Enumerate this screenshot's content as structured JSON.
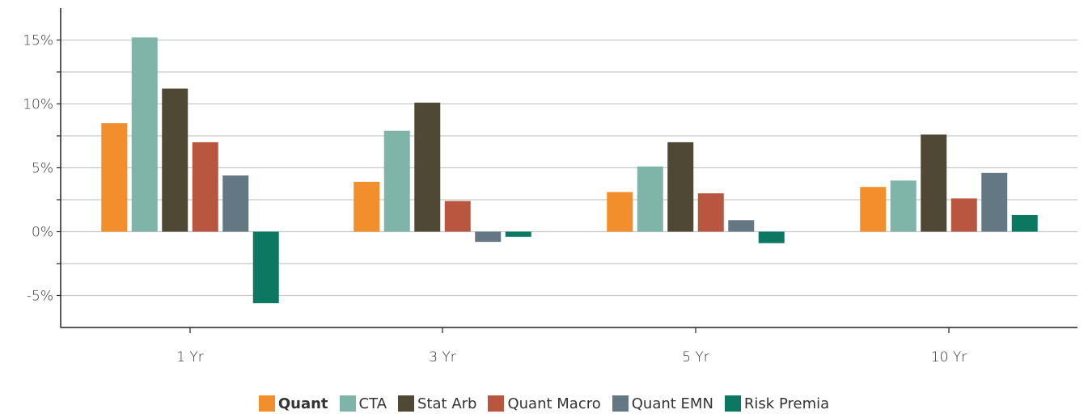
{
  "chart_data": {
    "type": "bar",
    "categories": [
      "1 Yr",
      "3 Yr",
      "5 Yr",
      "10 Yr"
    ],
    "ylim": [
      -7.5,
      17.5
    ],
    "y_ticks": [
      -5,
      0,
      5,
      10,
      15
    ],
    "y_tick_labels": [
      "-5%",
      "0%",
      "5%",
      "10%",
      "15%"
    ],
    "grid": true,
    "legend_position": "bottom",
    "series": [
      {
        "name": "Quant",
        "color": "#F28E2B",
        "values": [
          8.5,
          3.9,
          3.1,
          3.5
        ],
        "bold": true
      },
      {
        "name": "CTA",
        "color": "#7FB5A8",
        "values": [
          15.2,
          7.9,
          5.1,
          4.0
        ]
      },
      {
        "name": "Stat Arb",
        "color": "#4F4834",
        "values": [
          11.2,
          10.1,
          7.0,
          7.6
        ]
      },
      {
        "name": "Quant Macro",
        "color": "#B85640",
        "values": [
          7.0,
          2.4,
          3.0,
          2.6
        ]
      },
      {
        "name": "Quant EMN",
        "color": "#637883",
        "values": [
          4.4,
          -0.8,
          0.9,
          4.6
        ]
      },
      {
        "name": "Risk Premia",
        "color": "#0C7862",
        "values": [
          -5.6,
          -0.4,
          -0.9,
          1.3
        ]
      }
    ]
  }
}
